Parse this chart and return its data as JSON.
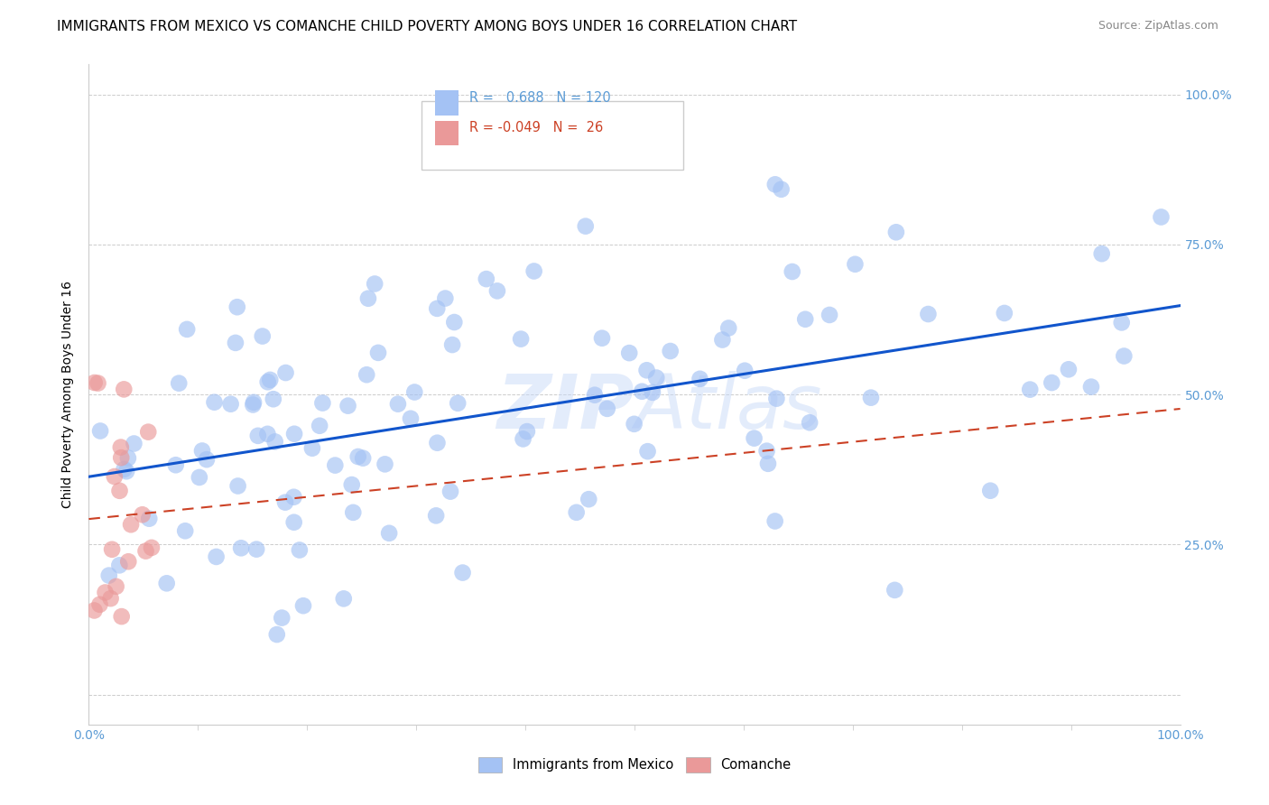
{
  "title": "IMMIGRANTS FROM MEXICO VS COMANCHE CHILD POVERTY AMONG BOYS UNDER 16 CORRELATION CHART",
  "source": "Source: ZipAtlas.com",
  "ylabel": "Child Poverty Among Boys Under 16",
  "legend_blue_label": "Immigrants from Mexico",
  "legend_pink_label": "Comanche",
  "r_blue": 0.688,
  "n_blue": 120,
  "r_pink": -0.049,
  "n_pink": 26,
  "watermark": "ZIPAtlas",
  "blue_color": "#a4c2f4",
  "pink_color": "#ea9999",
  "blue_line_color": "#1155cc",
  "pink_line_color": "#cc4125",
  "xlim": [
    0.0,
    1.0
  ],
  "ylim": [
    -0.05,
    1.05
  ],
  "yticks": [
    0.0,
    0.25,
    0.5,
    0.75,
    1.0
  ],
  "title_fontsize": 11,
  "axis_label_fontsize": 10,
  "tick_fontsize": 10
}
